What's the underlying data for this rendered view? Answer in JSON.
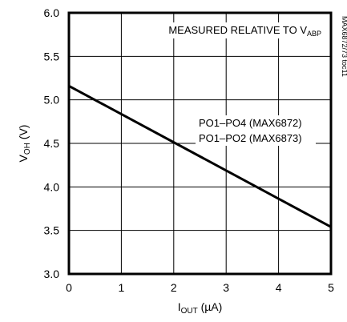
{
  "chart_data": {
    "type": "line",
    "x_axis": {
      "label_main": "I",
      "label_sub": "OUT",
      "label_unit": " (µA)",
      "range": [
        0,
        5
      ],
      "ticks": [
        "0",
        "1",
        "2",
        "3",
        "4",
        "5"
      ]
    },
    "y_axis": {
      "label_main": "V",
      "label_sub": "OH",
      "label_unit": " (V)",
      "range": [
        3.0,
        6.0
      ],
      "ticks": [
        "3.0",
        "3.5",
        "4.0",
        "4.5",
        "5.0",
        "5.5",
        "6.0"
      ]
    },
    "grid": true,
    "series": [
      {
        "x": [
          0,
          5
        ],
        "y": [
          5.16,
          3.54
        ]
      }
    ],
    "annotation_top": {
      "main": "MEASURED RELATIVE TO V",
      "sub": "ABP"
    },
    "series_annotation_lines": [
      "PO1–PO4 (MAX6872)",
      "PO1–PO2 (MAX6873)"
    ],
    "side_label": "MAX6872/73 toc11"
  }
}
